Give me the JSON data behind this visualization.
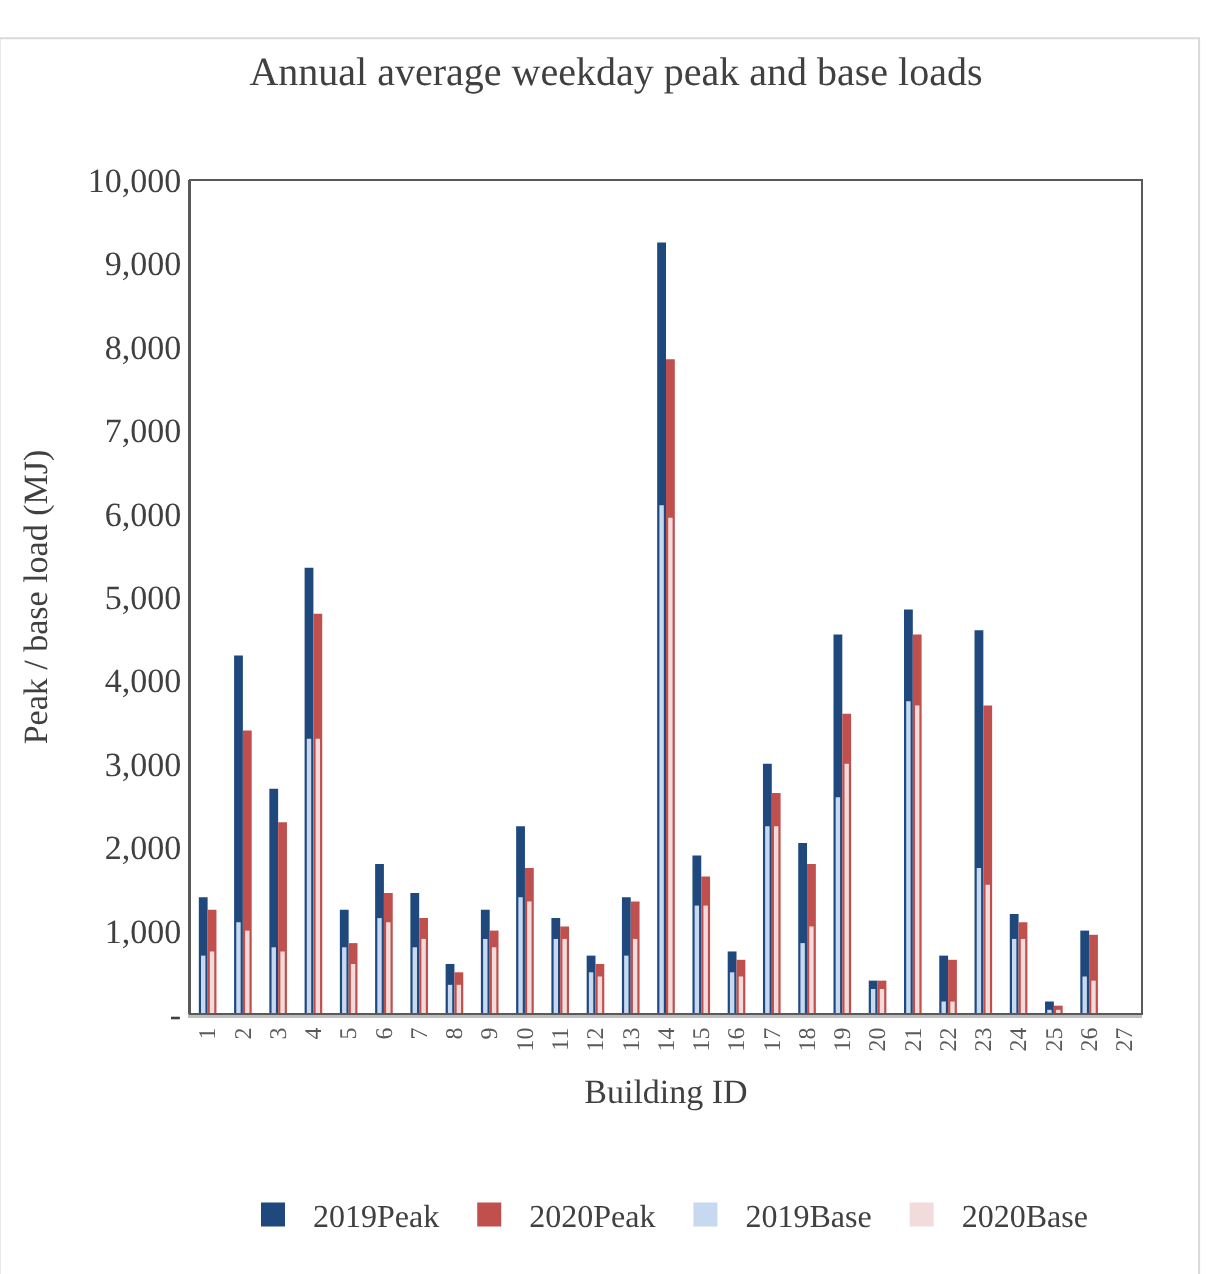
{
  "chart_data": {
    "type": "bar",
    "title": "Annual average weekday peak and base loads",
    "xlabel": "Building ID",
    "ylabel": "Peak / base load (MJ)",
    "categories": [
      "1",
      "2",
      "3",
      "4",
      "5",
      "6",
      "7",
      "8",
      "9",
      "10",
      "11",
      "12",
      "13",
      "14",
      "15",
      "16",
      "17",
      "18",
      "19",
      "20",
      "21",
      "22",
      "23",
      "24",
      "25",
      "26",
      "27"
    ],
    "series": [
      {
        "name": "2019Peak",
        "color": "#1f497d",
        "values": [
          1400,
          4300,
          2700,
          5350,
          1250,
          1800,
          1450,
          600,
          1250,
          2250,
          1150,
          700,
          1400,
          9250,
          1900,
          750,
          3000,
          2050,
          4550,
          400,
          4850,
          700,
          4600,
          1200,
          150,
          1000,
          null
        ]
      },
      {
        "name": "2020Peak",
        "color": "#c0504d",
        "values": [
          1250,
          3400,
          2300,
          4800,
          850,
          1450,
          1150,
          500,
          1000,
          1750,
          1050,
          600,
          1350,
          7850,
          1650,
          650,
          2650,
          1800,
          3600,
          400,
          4550,
          650,
          3700,
          1100,
          100,
          950,
          null
        ]
      },
      {
        "name": "2019Base",
        "color": "#c6d9f1",
        "values": [
          700,
          1100,
          800,
          3300,
          800,
          1150,
          800,
          350,
          900,
          1400,
          900,
          500,
          700,
          6100,
          1300,
          500,
          2250,
          850,
          2600,
          300,
          3750,
          150,
          1750,
          900,
          50,
          450,
          null
        ]
      },
      {
        "name": "2020Base",
        "color": "#f2dcdb",
        "values": [
          750,
          1000,
          750,
          3300,
          600,
          1100,
          900,
          350,
          800,
          1350,
          900,
          450,
          900,
          5950,
          1300,
          450,
          2250,
          1050,
          3000,
          300,
          3700,
          150,
          1550,
          900,
          50,
          400,
          null
        ]
      }
    ],
    "ylim": [
      0,
      10000
    ],
    "yticks": [
      {
        "value": 0,
        "label": "-"
      },
      {
        "value": 1000,
        "label": "1,000"
      },
      {
        "value": 2000,
        "label": "2,000"
      },
      {
        "value": 3000,
        "label": "3,000"
      },
      {
        "value": 4000,
        "label": "4,000"
      },
      {
        "value": 5000,
        "label": "5,000"
      },
      {
        "value": 6000,
        "label": "6,000"
      },
      {
        "value": 7000,
        "label": "7,000"
      },
      {
        "value": 8000,
        "label": "8,000"
      },
      {
        "value": 9000,
        "label": "9,000"
      },
      {
        "value": 10000,
        "label": "10,000"
      }
    ],
    "legend": "bottom"
  }
}
